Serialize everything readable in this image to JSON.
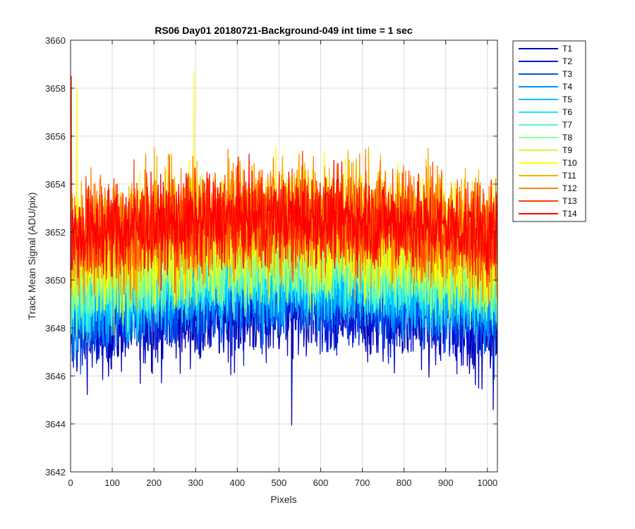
{
  "chart_data": {
    "type": "line",
    "title": "RS06 Day01 20180721-Background-049 int time = 1 sec",
    "xlabel": "Pixels",
    "ylabel": "Track Mean Signal (ADU/pix)",
    "xlim": [
      0,
      1024
    ],
    "ylim": [
      3642,
      3660
    ],
    "xticks": [
      0,
      100,
      200,
      300,
      400,
      500,
      600,
      700,
      800,
      900,
      1000
    ],
    "yticks": [
      3642,
      3644,
      3646,
      3648,
      3650,
      3652,
      3654,
      3656,
      3658,
      3660
    ],
    "grid": true,
    "legend_position": "outside-top-right",
    "n_points": 1024,
    "series": [
      {
        "name": "T1",
        "color": "#0000b4",
        "mean": 3648.2,
        "noise_amplitude": 1.5,
        "arch_height": 0.9,
        "extremes": [
          [
            530,
            3643.95
          ],
          [
            1013,
            3644.6
          ]
        ]
      },
      {
        "name": "T2",
        "color": "#0019d6",
        "mean": 3648.5,
        "noise_amplitude": 1.4,
        "arch_height": 0.9,
        "extremes": []
      },
      {
        "name": "T3",
        "color": "#0055f0",
        "mean": 3648.9,
        "noise_amplitude": 1.35,
        "arch_height": 0.9,
        "extremes": []
      },
      {
        "name": "T4",
        "color": "#0090ff",
        "mean": 3649.2,
        "noise_amplitude": 1.3,
        "arch_height": 0.9,
        "extremes": []
      },
      {
        "name": "T5",
        "color": "#00c2ff",
        "mean": 3649.5,
        "noise_amplitude": 1.3,
        "arch_height": 0.9,
        "extremes": []
      },
      {
        "name": "T6",
        "color": "#19e8f5",
        "mean": 3649.8,
        "noise_amplitude": 1.3,
        "arch_height": 0.9,
        "extremes": []
      },
      {
        "name": "T7",
        "color": "#5af7c8",
        "mean": 3650.1,
        "noise_amplitude": 1.3,
        "arch_height": 0.9,
        "extremes": []
      },
      {
        "name": "T8",
        "color": "#8cff8c",
        "mean": 3650.4,
        "noise_amplitude": 1.4,
        "arch_height": 0.9,
        "extremes": []
      },
      {
        "name": "T9",
        "color": "#c8ff3c",
        "mean": 3650.9,
        "noise_amplitude": 1.5,
        "arch_height": 0.9,
        "extremes": []
      },
      {
        "name": "T10",
        "color": "#ffff00",
        "mean": 3651.6,
        "noise_amplitude": 1.8,
        "arch_height": 1.0,
        "extremes": [
          [
            296,
            3658.7
          ],
          [
            15,
            3658.0
          ]
        ]
      },
      {
        "name": "T11",
        "color": "#f0b400",
        "mean": 3651.9,
        "noise_amplitude": 1.8,
        "arch_height": 1.0,
        "extremes": []
      },
      {
        "name": "T12",
        "color": "#ff8000",
        "mean": 3652.1,
        "noise_amplitude": 1.7,
        "arch_height": 1.0,
        "extremes": []
      },
      {
        "name": "T13",
        "color": "#ff4000",
        "mean": 3652.0,
        "noise_amplitude": 1.5,
        "arch_height": 0.9,
        "extremes": [
          [
            2,
            3658.5
          ]
        ]
      },
      {
        "name": "T14",
        "color": "#ff0000",
        "mean": 3652.1,
        "noise_amplitude": 1.3,
        "arch_height": 0.8,
        "extremes": []
      }
    ]
  }
}
